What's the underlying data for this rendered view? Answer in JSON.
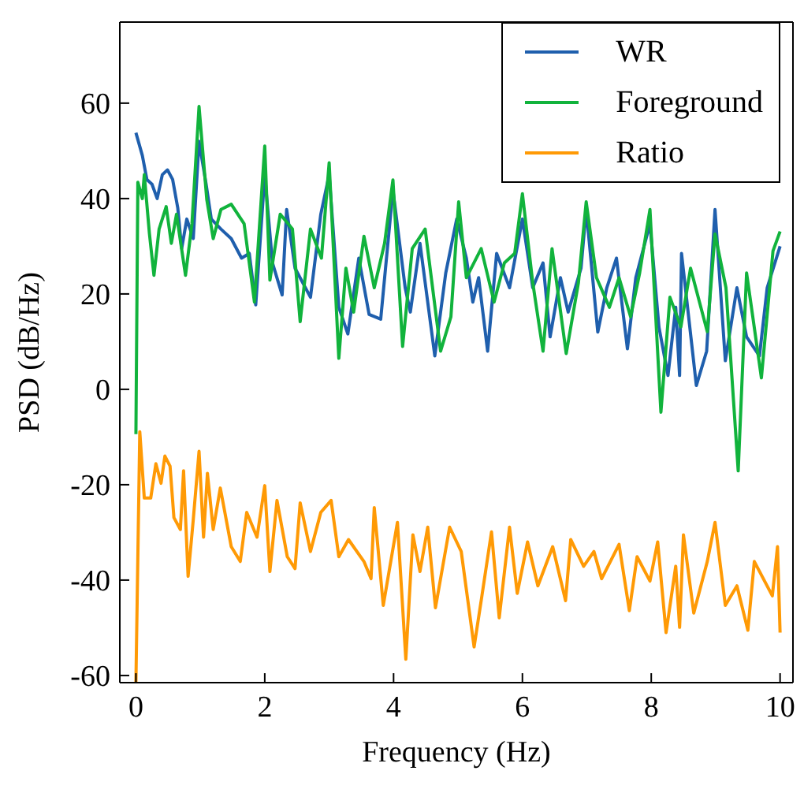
{
  "chart_data": {
    "type": "line",
    "xlabel": "Frequency (Hz)",
    "ylabel": "PSD (dB/Hz)",
    "xlim": [
      -0.25,
      10.2
    ],
    "ylim": [
      -61.5,
      77
    ],
    "xticks": [
      0,
      2,
      4,
      6,
      8,
      10
    ],
    "yticks": [
      -60,
      -40,
      -20,
      0,
      20,
      40,
      60
    ],
    "grid": false,
    "legend": "top right",
    "marker": "none",
    "line_style": "solid",
    "series": [
      {
        "name": "WR",
        "color": "#1f5fad",
        "x": [
          0,
          0.1,
          0.17,
          0.25,
          0.33,
          0.41,
          0.49,
          0.57,
          0.65,
          0.71,
          0.79,
          0.89,
          0.98,
          1.09,
          1.17,
          1.32,
          1.48,
          1.64,
          1.76,
          1.86,
          2.0,
          2.12,
          2.27,
          2.34,
          2.47,
          2.71,
          2.87,
          3.0,
          3.15,
          3.29,
          3.46,
          3.62,
          3.8,
          3.99,
          4.18,
          4.26,
          4.41,
          4.64,
          4.81,
          4.98,
          5.13,
          5.23,
          5.32,
          5.46,
          5.6,
          5.8,
          6.0,
          6.16,
          6.32,
          6.43,
          6.59,
          6.71,
          6.91,
          6.99,
          7.17,
          7.31,
          7.46,
          7.63,
          7.76,
          7.98,
          8.12,
          8.26,
          8.38,
          8.44,
          8.47,
          8.7,
          8.86,
          8.99,
          9.15,
          9.33,
          9.48,
          9.68,
          9.8,
          10.0
        ],
        "values": [
          53.8,
          49,
          44,
          43,
          40,
          45,
          46,
          44,
          38,
          29.5,
          35.7,
          31.6,
          52,
          43,
          35.7,
          33.6,
          31.6,
          27.5,
          28.5,
          17.7,
          45,
          26.5,
          19.8,
          37.7,
          25.4,
          19.3,
          36.7,
          45,
          17.2,
          11.6,
          27.5,
          15.7,
          14.7,
          41.8,
          21.3,
          16.2,
          30.6,
          7,
          24.4,
          35.7,
          27.5,
          18.3,
          23.4,
          8,
          28.5,
          21.3,
          35.7,
          21.3,
          26.5,
          11,
          23.4,
          16.2,
          25.4,
          37.7,
          12,
          21.3,
          27.5,
          8.5,
          23.4,
          34.7,
          13,
          2.9,
          17.2,
          2.9,
          28.5,
          0.8,
          8,
          37.7,
          6,
          21.3,
          11,
          7,
          21.3,
          30
        ]
      },
      {
        "name": "Foreground",
        "color": "#11b33c",
        "x": [
          0,
          0.03,
          0.1,
          0.13,
          0.21,
          0.28,
          0.36,
          0.47,
          0.55,
          0.63,
          0.77,
          0.87,
          0.98,
          1.1,
          1.2,
          1.32,
          1.48,
          1.68,
          1.84,
          2.0,
          2.08,
          2.24,
          2.43,
          2.55,
          2.71,
          2.88,
          3.0,
          3.15,
          3.26,
          3.38,
          3.54,
          3.7,
          3.86,
          3.99,
          4.14,
          4.29,
          4.49,
          4.73,
          4.89,
          5.01,
          5.13,
          5.36,
          5.56,
          5.72,
          5.88,
          6.0,
          6.16,
          6.32,
          6.46,
          6.68,
          6.87,
          6.99,
          7.15,
          7.35,
          7.5,
          7.68,
          7.82,
          7.98,
          8.15,
          8.29,
          8.46,
          8.61,
          8.87,
          8.99,
          9.16,
          9.35,
          9.48,
          9.71,
          9.89,
          10.0
        ],
        "values": [
          -9.4,
          43.4,
          40,
          45,
          32.6,
          23.9,
          33.6,
          38.3,
          30.6,
          36.7,
          23.9,
          34.7,
          59.3,
          39.8,
          31.6,
          37.7,
          38.8,
          34.7,
          18.3,
          51,
          22.9,
          36.7,
          33.6,
          14.2,
          33.6,
          27.5,
          47.5,
          6.5,
          25.4,
          16.2,
          32.1,
          21.3,
          30.6,
          43.9,
          9,
          29.5,
          33.6,
          8,
          15.2,
          39.3,
          23.4,
          29.5,
          18.3,
          26.5,
          28.5,
          41,
          22.4,
          8,
          29.5,
          7.5,
          22.4,
          39.3,
          23.4,
          17.2,
          23.4,
          15.2,
          24.4,
          37.7,
          -4.8,
          19.3,
          13.1,
          25.4,
          12.1,
          32.6,
          21.3,
          -17.1,
          24.4,
          2.4,
          29,
          33.1
        ]
      },
      {
        "name": "Ratio",
        "color": "#ff9a05",
        "x": [
          0,
          0.06,
          0.13,
          0.23,
          0.31,
          0.39,
          0.45,
          0.53,
          0.59,
          0.69,
          0.74,
          0.81,
          0.89,
          0.98,
          1.05,
          1.11,
          1.2,
          1.31,
          1.36,
          1.48,
          1.62,
          1.72,
          1.88,
          2.0,
          2.08,
          2.19,
          2.35,
          2.47,
          2.55,
          2.71,
          2.87,
          3.03,
          3.15,
          3.3,
          3.54,
          3.65,
          3.7,
          3.84,
          4.06,
          4.19,
          4.3,
          4.41,
          4.53,
          4.65,
          4.87,
          5.05,
          5.25,
          5.36,
          5.52,
          5.64,
          5.8,
          5.92,
          6.08,
          6.24,
          6.47,
          6.67,
          6.75,
          6.95,
          7.11,
          7.23,
          7.5,
          7.66,
          7.78,
          7.98,
          8.1,
          8.23,
          8.38,
          8.44,
          8.5,
          8.66,
          8.87,
          8.99,
          9.15,
          9.33,
          9.5,
          9.6,
          9.88,
          9.96,
          10.0
        ],
        "values": [
          -61.5,
          -8.9,
          -22.8,
          -22.8,
          -15.6,
          -19.7,
          -14,
          -16.1,
          -26.9,
          -29.4,
          -17.1,
          -39.2,
          -27.4,
          -13,
          -31,
          -17.6,
          -29.4,
          -20.7,
          -24.3,
          -33,
          -36.1,
          -25.8,
          -31,
          -20.2,
          -38.2,
          -23.3,
          -35.1,
          -37.6,
          -23.8,
          -34,
          -25.8,
          -23.3,
          -35.1,
          -31.5,
          -36.1,
          -39.7,
          -24.8,
          -45.3,
          -27.9,
          -56.6,
          -30.5,
          -38.2,
          -28.9,
          -45.8,
          -28.9,
          -34,
          -54,
          -44.3,
          -29.9,
          -47.9,
          -28.9,
          -42.8,
          -32,
          -41.2,
          -33,
          -44.3,
          -31.5,
          -37.1,
          -34,
          -39.7,
          -32.5,
          -46.4,
          -35.1,
          -40.2,
          -32,
          -51,
          -37.1,
          -49.9,
          -30.5,
          -46.9,
          -36.1,
          -27.9,
          -45.3,
          -41.2,
          -50.5,
          -36.1,
          -43.3,
          -33,
          -51
        ]
      }
    ]
  }
}
